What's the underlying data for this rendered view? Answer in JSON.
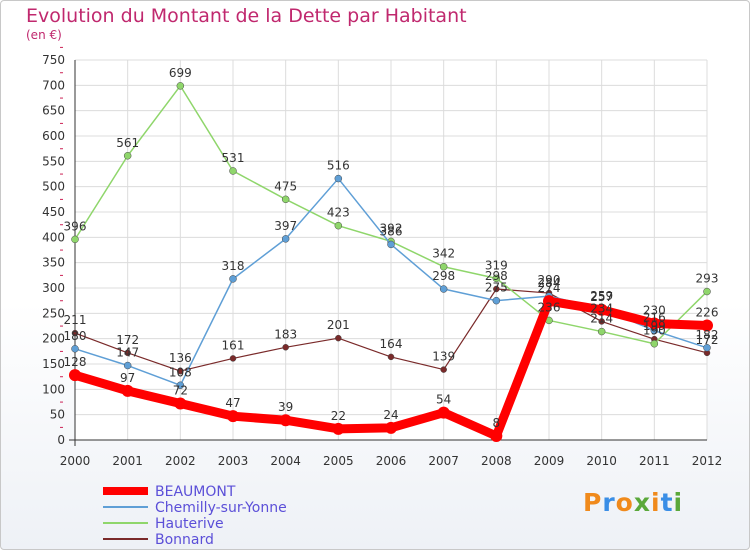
{
  "title": "Evolution du Montant de la Dette par Habitant",
  "subtitle": "(en €)",
  "logo": {
    "letters": [
      "P",
      "r",
      "o",
      "x",
      "i",
      "t",
      "i"
    ],
    "colors": [
      "#f08a1c",
      "#3a8ee6",
      "#f08a1c",
      "#5aa83a",
      "#f08a1c",
      "#3a8ee6",
      "#5aa83a"
    ]
  },
  "chart_data": {
    "type": "line",
    "x": [
      2000,
      2001,
      2002,
      2003,
      2004,
      2005,
      2006,
      2007,
      2008,
      2009,
      2010,
      2011,
      2012
    ],
    "ylim": [
      0,
      750
    ],
    "yticks": [
      0,
      50,
      100,
      150,
      200,
      250,
      300,
      350,
      400,
      450,
      500,
      550,
      600,
      650,
      700,
      750
    ],
    "grid": true,
    "legend_position": "bottom-left",
    "series": [
      {
        "name": "BEAUMONT",
        "color": "#ff0000",
        "width": 9,
        "marker": 6,
        "values": [
          128,
          97,
          72,
          47,
          39,
          22,
          24,
          54,
          8,
          274,
          257,
          230,
          226
        ]
      },
      {
        "name": "Chemilly-sur-Yonne",
        "color": "#5f9fd6",
        "width": 1.5,
        "marker": 3.5,
        "values": [
          180,
          147,
          108,
          318,
          397,
          516,
          386,
          298,
          275,
          284,
          259,
          216,
          182
        ]
      },
      {
        "name": "Hauterive",
        "color": "#8fd66b",
        "width": 1.5,
        "marker": 3.5,
        "values": [
          396,
          561,
          699,
          531,
          475,
          423,
          392,
          342,
          319,
          236,
          214,
          190,
          293
        ]
      },
      {
        "name": "Bonnard",
        "color": "#7a2a2a",
        "width": 1.2,
        "marker": 3,
        "values": [
          211,
          172,
          136,
          161,
          183,
          201,
          164,
          139,
          298,
          290,
          234,
          199,
          172
        ]
      }
    ]
  }
}
